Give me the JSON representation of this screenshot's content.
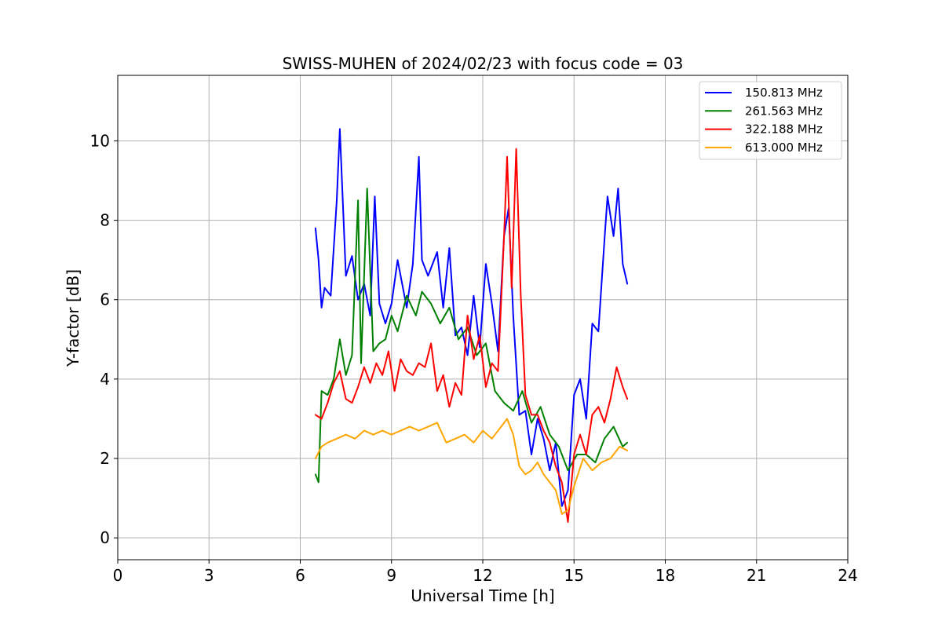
{
  "chart_data": {
    "type": "line",
    "title": "SWISS-MUHEN of 2024/02/23 with focus code = 03",
    "xlabel": "Universal Time [h]",
    "ylabel": "Y-factor [dB]",
    "xlim": [
      0,
      24
    ],
    "ylim": [
      -0.55,
      11.65
    ],
    "xticks": [
      0,
      3,
      6,
      9,
      12,
      15,
      18,
      21,
      24
    ],
    "yticks": [
      0,
      2,
      4,
      6,
      8,
      10
    ],
    "grid": true,
    "legend_position": "top-right",
    "series": [
      {
        "name": "150.813 MHz",
        "color": "#0000ff",
        "x": [
          6.5,
          6.6,
          6.7,
          6.8,
          7.0,
          7.2,
          7.3,
          7.5,
          7.7,
          7.9,
          8.1,
          8.3,
          8.45,
          8.6,
          8.8,
          9.0,
          9.2,
          9.5,
          9.7,
          9.9,
          10.0,
          10.2,
          10.5,
          10.7,
          10.9,
          11.1,
          11.3,
          11.5,
          11.7,
          11.9,
          12.1,
          12.3,
          12.5,
          12.7,
          12.85,
          13.0,
          13.2,
          13.4,
          13.6,
          13.8,
          14.0,
          14.2,
          14.4,
          14.6,
          14.8,
          15.0,
          15.2,
          15.4,
          15.6,
          15.8,
          16.0,
          16.1,
          16.3,
          16.45,
          16.6,
          16.75
        ],
        "y": [
          7.8,
          7.0,
          5.8,
          6.3,
          6.1,
          8.5,
          10.3,
          6.6,
          7.1,
          6.0,
          6.4,
          5.6,
          8.6,
          5.9,
          5.4,
          5.9,
          7.0,
          5.8,
          6.9,
          9.6,
          7.0,
          6.6,
          7.2,
          5.8,
          7.3,
          5.1,
          5.3,
          4.6,
          6.1,
          4.8,
          6.9,
          5.9,
          4.7,
          7.6,
          8.3,
          5.6,
          3.1,
          3.2,
          2.1,
          3.0,
          2.5,
          1.7,
          2.4,
          0.8,
          1.2,
          3.6,
          4.0,
          3.0,
          5.4,
          5.2,
          7.5,
          8.6,
          7.6,
          8.8,
          6.9,
          6.4
        ]
      },
      {
        "name": "261.563 MHz",
        "color": "#008000",
        "x": [
          6.5,
          6.6,
          6.7,
          6.9,
          7.1,
          7.3,
          7.5,
          7.7,
          7.9,
          8.0,
          8.2,
          8.4,
          8.6,
          8.8,
          9.0,
          9.2,
          9.5,
          9.8,
          10.0,
          10.3,
          10.6,
          10.9,
          11.2,
          11.5,
          11.8,
          12.1,
          12.4,
          12.7,
          13.0,
          13.3,
          13.6,
          13.9,
          14.2,
          14.5,
          14.8,
          15.1,
          15.4,
          15.7,
          16.0,
          16.3,
          16.6,
          16.75
        ],
        "y": [
          1.6,
          1.4,
          3.7,
          3.6,
          4.0,
          5.0,
          4.1,
          4.6,
          8.5,
          4.4,
          8.8,
          4.7,
          4.9,
          5.0,
          5.6,
          5.2,
          6.1,
          5.6,
          6.2,
          5.9,
          5.4,
          5.8,
          5.0,
          5.3,
          4.6,
          4.9,
          3.7,
          3.4,
          3.2,
          3.7,
          2.9,
          3.3,
          2.6,
          2.3,
          1.7,
          2.1,
          2.1,
          1.9,
          2.5,
          2.8,
          2.3,
          2.4
        ]
      },
      {
        "name": "322.188 MHz",
        "color": "#ff0000",
        "x": [
          6.5,
          6.7,
          6.9,
          7.1,
          7.3,
          7.5,
          7.7,
          7.9,
          8.1,
          8.3,
          8.5,
          8.7,
          8.9,
          9.1,
          9.3,
          9.5,
          9.7,
          9.9,
          10.1,
          10.3,
          10.5,
          10.7,
          10.9,
          11.1,
          11.3,
          11.5,
          11.7,
          11.9,
          12.1,
          12.3,
          12.5,
          12.7,
          12.8,
          12.95,
          13.1,
          13.25,
          13.4,
          13.6,
          13.8,
          14.0,
          14.2,
          14.4,
          14.6,
          14.8,
          15.0,
          15.2,
          15.4,
          15.6,
          15.8,
          16.0,
          16.2,
          16.4,
          16.6,
          16.75
        ],
        "y": [
          3.1,
          3.0,
          3.4,
          3.9,
          4.2,
          3.5,
          3.4,
          3.8,
          4.3,
          3.9,
          4.4,
          4.1,
          4.7,
          3.7,
          4.5,
          4.2,
          4.1,
          4.4,
          4.3,
          4.9,
          3.7,
          4.1,
          3.3,
          3.9,
          3.6,
          5.6,
          4.5,
          5.1,
          3.8,
          4.4,
          4.2,
          7.6,
          9.6,
          6.3,
          9.8,
          6.1,
          3.6,
          3.1,
          3.1,
          2.7,
          2.4,
          1.8,
          1.4,
          0.4,
          2.1,
          2.6,
          2.1,
          3.1,
          3.3,
          2.9,
          3.5,
          4.3,
          3.8,
          3.5
        ]
      },
      {
        "name": "613.000 MHz",
        "color": "#ffa500",
        "x": [
          6.5,
          6.7,
          6.9,
          7.2,
          7.5,
          7.8,
          8.1,
          8.4,
          8.7,
          9.0,
          9.3,
          9.6,
          9.9,
          10.2,
          10.5,
          10.8,
          11.1,
          11.4,
          11.7,
          12.0,
          12.3,
          12.6,
          12.8,
          13.0,
          13.2,
          13.4,
          13.6,
          13.8,
          14.0,
          14.2,
          14.4,
          14.6,
          14.8,
          15.0,
          15.3,
          15.6,
          15.9,
          16.2,
          16.5,
          16.75
        ],
        "y": [
          2.0,
          2.3,
          2.4,
          2.5,
          2.6,
          2.5,
          2.7,
          2.6,
          2.7,
          2.6,
          2.7,
          2.8,
          2.7,
          2.8,
          2.9,
          2.4,
          2.5,
          2.6,
          2.4,
          2.7,
          2.5,
          2.8,
          3.0,
          2.6,
          1.8,
          1.6,
          1.7,
          1.9,
          1.6,
          1.4,
          1.2,
          0.6,
          0.7,
          1.3,
          2.0,
          1.7,
          1.9,
          2.0,
          2.3,
          2.2
        ]
      }
    ]
  }
}
